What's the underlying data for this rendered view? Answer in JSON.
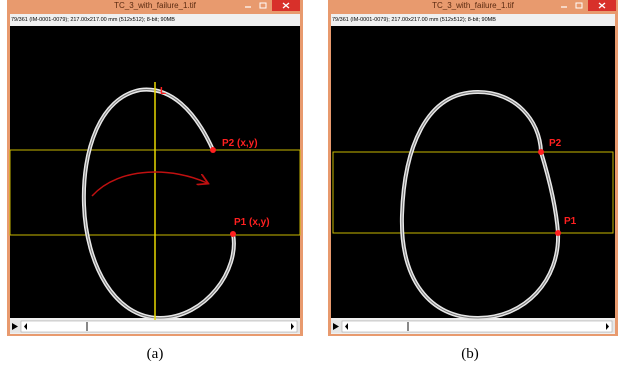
{
  "windows": [
    {
      "title": "TC_3_with_failure_1.tif",
      "info": "79/361 (IM-0001-0079); 217.00x217.00 mm (512x512); 8-bit; 90MB",
      "labels": {
        "line": "L",
        "p2": "P2 (x,y)",
        "p1": "P1 (x,y)"
      },
      "caption": "(a)"
    },
    {
      "title": "TC_3_with_failure_1.tif",
      "info": "79/361 (IM-0001-0079); 217.00x217.00 mm (512x512); 8-bit; 90MB",
      "labels": {
        "p2": "P2",
        "p1": "P1"
      },
      "caption": "(b)"
    }
  ]
}
